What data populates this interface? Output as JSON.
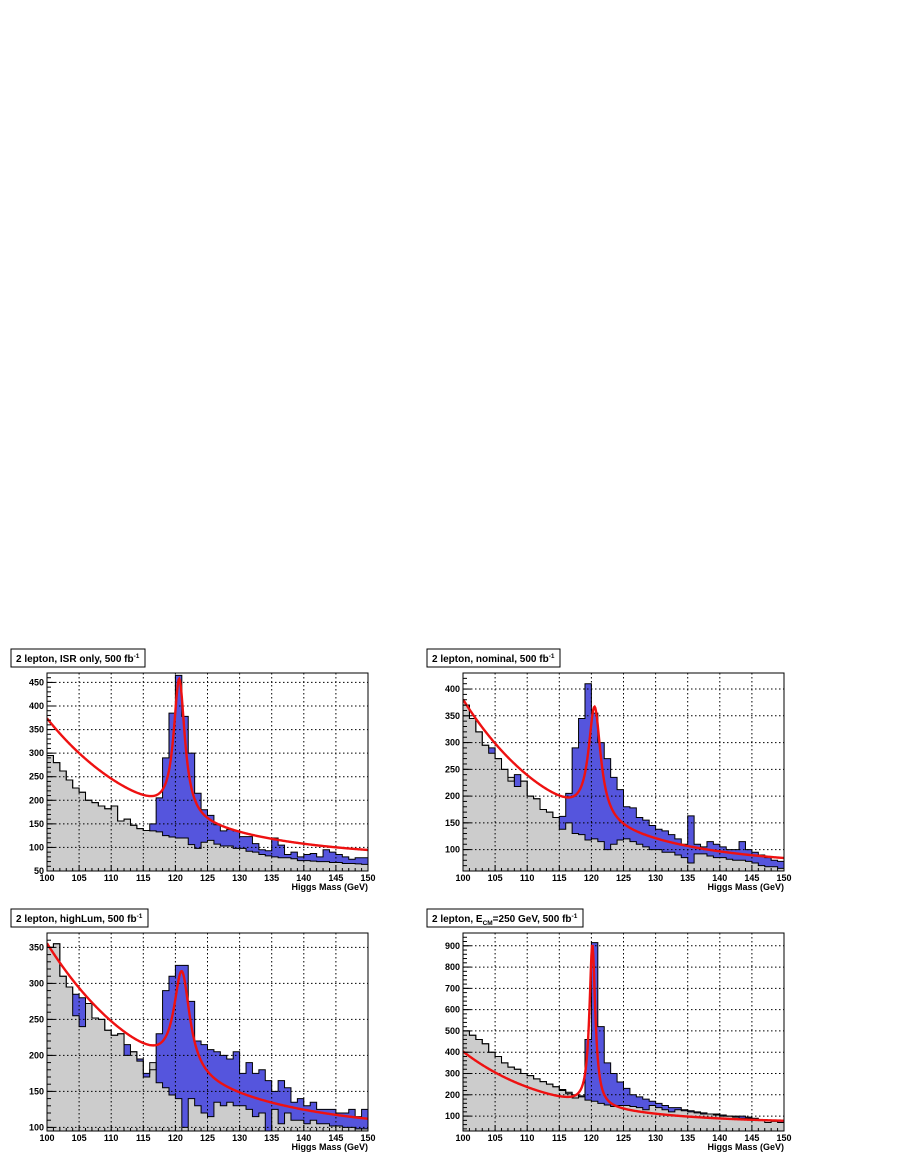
{
  "figure": {
    "background": "#ffffff",
    "colors": {
      "background_fill": "#cccccc",
      "signal_fill": "#5555dd",
      "histogram_line": "#000000",
      "fit_curve": "#ee1111",
      "grid": "#000000"
    }
  },
  "chart_data": [
    {
      "type": "histogram",
      "title": "2 lepton, ISR only, 500 fb",
      "title_sup": "-1",
      "xlabel": "Higgs Mass (GeV)",
      "ylabel": "",
      "xlim": [
        100,
        150
      ],
      "ylim": [
        50,
        470
      ],
      "xticks": [
        100,
        105,
        110,
        115,
        120,
        125,
        130,
        135,
        140,
        145,
        150
      ],
      "yticks": [
        50,
        100,
        150,
        200,
        250,
        300,
        350,
        400,
        450
      ],
      "grid": true,
      "bin_width": 1,
      "series": [
        {
          "name": "background",
          "values": [
            295,
            280,
            262,
            243,
            226,
            217,
            200,
            195,
            188,
            182,
            188,
            156,
            160,
            147,
            140,
            136,
            135,
            133,
            125,
            122,
            120,
            120,
            106,
            98,
            111,
            115,
            107,
            103,
            103,
            98,
            98,
            92,
            90,
            85,
            82,
            80,
            78,
            78,
            76,
            72,
            72,
            71,
            70,
            70,
            68,
            68,
            66,
            66,
            65,
            64
          ]
        },
        {
          "name": "total",
          "values": [
            295,
            280,
            262,
            243,
            226,
            217,
            200,
            195,
            188,
            182,
            188,
            156,
            160,
            147,
            140,
            136,
            150,
            205,
            290,
            385,
            465,
            378,
            300,
            215,
            180,
            168,
            148,
            135,
            138,
            135,
            123,
            123,
            108,
            95,
            93,
            120,
            105,
            85,
            90,
            80,
            85,
            87,
            80,
            95,
            90,
            85,
            80,
            75,
            78,
            78
          ]
        },
        {
          "name": "fit",
          "mu": 120.6,
          "gamma": 1.05,
          "peak": 290,
          "bkg_a": 295,
          "bkg_b": 0.058,
          "bkg_c": 78
        }
      ]
    },
    {
      "type": "histogram",
      "title": "2 lepton, nominal, 500 fb",
      "title_sup": "-1",
      "xlabel": "Higgs Mass (GeV)",
      "ylabel": "",
      "xlim": [
        100,
        150
      ],
      "ylim": [
        60,
        430
      ],
      "xticks": [
        100,
        105,
        110,
        115,
        120,
        125,
        130,
        135,
        140,
        145,
        150
      ],
      "yticks": [
        100,
        150,
        200,
        250,
        300,
        350,
        400
      ],
      "grid": true,
      "bin_width": 1,
      "series": [
        {
          "name": "background",
          "values": [
            370,
            345,
            320,
            295,
            280,
            270,
            250,
            235,
            218,
            228,
            200,
            195,
            175,
            170,
            160,
            138,
            150,
            130,
            128,
            118,
            120,
            115,
            100,
            110,
            118,
            120,
            115,
            110,
            105,
            100,
            100,
            95,
            95,
            90,
            85,
            75,
            92,
            92,
            88,
            85,
            85,
            82,
            80,
            80,
            78,
            75,
            70,
            68,
            68,
            65
          ]
        },
        {
          "name": "total",
          "values": [
            370,
            345,
            320,
            295,
            290,
            270,
            250,
            228,
            240,
            228,
            200,
            195,
            175,
            170,
            160,
            162,
            205,
            290,
            345,
            410,
            355,
            300,
            270,
            235,
            212,
            180,
            178,
            160,
            155,
            145,
            138,
            135,
            128,
            120,
            110,
            163,
            110,
            105,
            115,
            110,
            105,
            100,
            100,
            115,
            100,
            95,
            90,
            85,
            80,
            78
          ]
        },
        {
          "name": "fit",
          "mu": 120.5,
          "gamma": 1.15,
          "peak": 210,
          "bkg_a": 310,
          "bkg_b": 0.062,
          "bkg_c": 70
        }
      ]
    },
    {
      "type": "histogram",
      "title": "2 lepton, highLum, 500 fb",
      "title_sup": "-1",
      "xlabel": "Higgs Mass (GeV)",
      "ylabel": "",
      "xlim": [
        100,
        150
      ],
      "ylim": [
        95,
        370
      ],
      "xticks": [
        100,
        105,
        110,
        115,
        120,
        125,
        130,
        135,
        140,
        145,
        150
      ],
      "yticks": [
        100,
        150,
        200,
        250,
        300,
        350
      ],
      "grid": true,
      "bin_width": 1,
      "series": [
        {
          "name": "background",
          "values": [
            350,
            355,
            310,
            295,
            255,
            240,
            272,
            252,
            250,
            235,
            228,
            230,
            200,
            205,
            192,
            170,
            190,
            162,
            155,
            145,
            140,
            100,
            140,
            130,
            120,
            115,
            135,
            130,
            135,
            130,
            130,
            125,
            115,
            120,
            95,
            125,
            105,
            120,
            110,
            110,
            105,
            110,
            105,
            105,
            102,
            102,
            100,
            100,
            98,
            98
          ]
        },
        {
          "name": "total",
          "values": [
            350,
            355,
            310,
            295,
            285,
            280,
            272,
            252,
            250,
            235,
            228,
            230,
            215,
            205,
            195,
            175,
            180,
            230,
            290,
            310,
            325,
            325,
            275,
            220,
            215,
            208,
            205,
            200,
            195,
            205,
            175,
            190,
            175,
            180,
            165,
            150,
            165,
            155,
            135,
            140,
            130,
            135,
            125,
            125,
            125,
            120,
            120,
            125,
            115,
            125
          ]
        },
        {
          "name": "fit",
          "mu": 121.0,
          "gamma": 1.5,
          "peak": 140,
          "bkg_a": 260,
          "bkg_b": 0.055,
          "bkg_c": 95
        }
      ]
    },
    {
      "type": "histogram",
      "title": "2 lepton, E",
      "title_sub": "CM",
      "title_rest": "=250 GeV, 500 fb",
      "title_sup": "-1",
      "xlabel": "Higgs Mass (GeV)",
      "ylabel": "",
      "xlim": [
        100,
        150
      ],
      "ylim": [
        30,
        960
      ],
      "xticks": [
        100,
        105,
        110,
        115,
        120,
        125,
        130,
        135,
        140,
        145,
        150
      ],
      "yticks": [
        100,
        200,
        300,
        400,
        500,
        600,
        700,
        800,
        900
      ],
      "grid": true,
      "bin_width": 1,
      "series": [
        {
          "name": "background",
          "values": [
            500,
            480,
            460,
            440,
            400,
            380,
            350,
            330,
            320,
            300,
            290,
            275,
            262,
            250,
            238,
            220,
            212,
            200,
            190,
            175,
            170,
            160,
            152,
            145,
            150,
            150,
            145,
            140,
            130,
            150,
            140,
            130,
            120,
            130,
            125,
            120,
            115,
            110,
            110,
            105,
            100,
            100,
            95,
            90,
            90,
            85,
            80,
            80,
            75,
            70
          ]
        },
        {
          "name": "total",
          "values": [
            500,
            480,
            460,
            440,
            400,
            380,
            350,
            330,
            320,
            300,
            290,
            275,
            262,
            250,
            238,
            225,
            205,
            185,
            195,
            460,
            915,
            520,
            350,
            300,
            260,
            230,
            200,
            190,
            180,
            170,
            160,
            150,
            140,
            140,
            130,
            125,
            120,
            115,
            110,
            110,
            105,
            100,
            100,
            100,
            95,
            90,
            80,
            70,
            80,
            80
          ]
        },
        {
          "name": "fit",
          "mu": 120.15,
          "gamma": 0.55,
          "peak": 755,
          "bkg_a": 335,
          "bkg_b": 0.07,
          "bkg_c": 68
        }
      ]
    }
  ]
}
